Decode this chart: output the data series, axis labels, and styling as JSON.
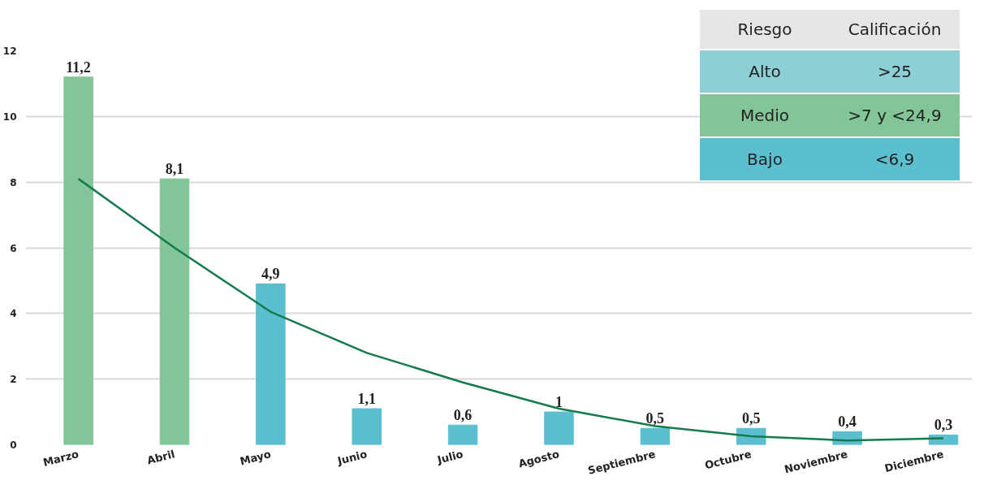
{
  "chart_data": {
    "type": "bar",
    "categories": [
      "Marzo",
      "Abril",
      "Mayo",
      "Junio",
      "Julio",
      "Agosto",
      "Septiembre",
      "Octubre",
      "Noviembre",
      "Diciembre"
    ],
    "ylim": [
      0,
      12
    ],
    "yticks": [
      0,
      2,
      4,
      6,
      8,
      10,
      12
    ],
    "grid": "y",
    "series": [
      {
        "colors": [
          "#82c596",
          "#82c596",
          "#5bbfcf",
          "#5bbfcf",
          "#5bbfcf",
          "#5bbfcf",
          "#5bbfcf",
          "#5bbfcf",
          "#5bbfcf",
          "#5bbfcf"
        ],
        "values": [
          11.2,
          8.1,
          4.9,
          1.1,
          0.6,
          1,
          0.5,
          0.5,
          0.4,
          0.3
        ],
        "value_labels": [
          "11,2",
          "8,1",
          "4,9",
          "1,1",
          "0,6",
          "1",
          "0,5",
          "0,5",
          "0,4",
          "0,3"
        ]
      },
      {
        "type": "line",
        "color": "#157a4e",
        "values": [
          8.1,
          6.0,
          4.05,
          2.8,
          1.9,
          1.1,
          0.57,
          0.26,
          0.13,
          0.2
        ]
      }
    ],
    "annotations": [
      "Riesgo",
      "Calificación",
      "Alto",
      ">25",
      "Medio",
      ">7 y <24,9",
      "Bajo",
      "<6,9"
    ]
  }
}
